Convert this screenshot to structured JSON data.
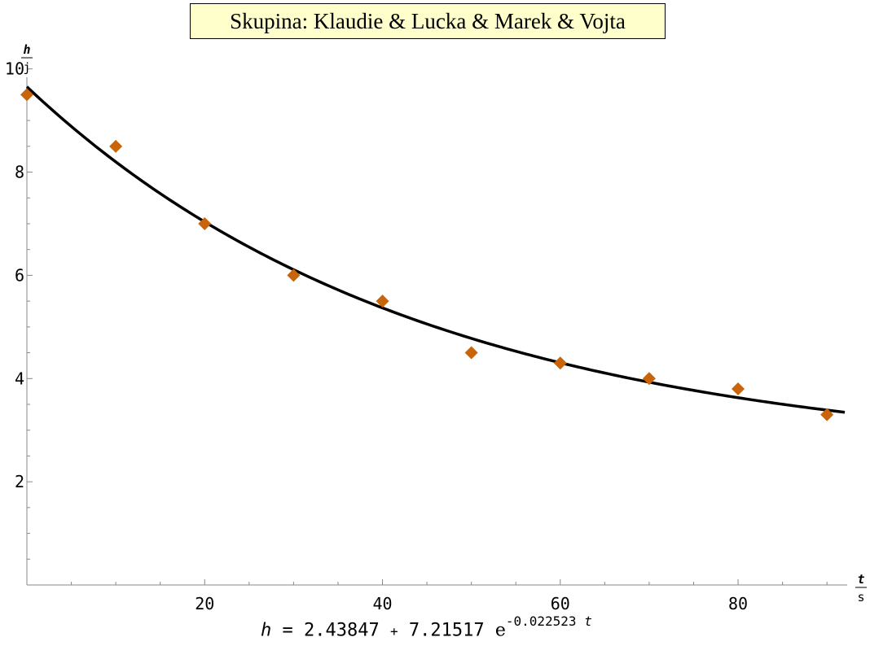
{
  "chart_data": {
    "type": "scatter",
    "title": "Skupina: Klaudie & Lucka & Marek & Vojta",
    "xlabel": {
      "numerator": "t",
      "denominator": "s"
    },
    "ylabel": {
      "numerator": "h",
      "denominator": "j"
    },
    "xlim": [
      0,
      92
    ],
    "ylim": [
      0,
      10.2
    ],
    "x_ticks": [
      20,
      40,
      60,
      80
    ],
    "y_ticks": [
      2,
      4,
      6,
      8,
      10
    ],
    "grid": false,
    "series": [
      {
        "marker": "diamond",
        "color": "#c8640a",
        "points": [
          [
            0,
            9.5
          ],
          [
            10,
            8.5
          ],
          [
            20,
            7.0
          ],
          [
            30,
            6.0
          ],
          [
            40,
            5.5
          ],
          [
            50,
            4.5
          ],
          [
            60,
            4.3
          ],
          [
            70,
            4.0
          ],
          [
            80,
            3.8
          ],
          [
            90,
            3.3
          ]
        ]
      }
    ],
    "fit": {
      "color": "#000000",
      "a": 2.43847,
      "b": 7.21517,
      "k": -0.022523,
      "formula": {
        "lhs": "h",
        "eq": "=",
        "c0": "2.43847",
        "plus": "+",
        "c1": "7.21517",
        "base": "e",
        "exponent": "-0.022523",
        "var": "t"
      }
    }
  }
}
